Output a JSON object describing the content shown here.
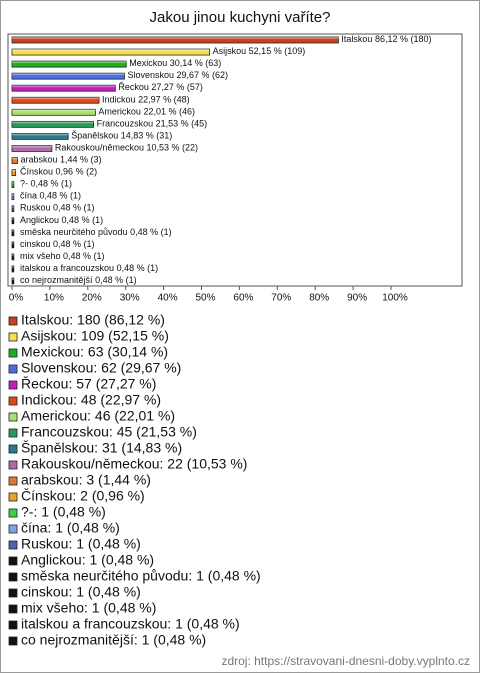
{
  "chart_data": {
    "type": "bar",
    "orientation": "horizontal",
    "title": "Jakou jinou kuchyni vaříte?",
    "categories": [
      "Italskou",
      "Asijskou",
      "Mexickou",
      "Slovenskou",
      "Řeckou",
      "Indickou",
      "Americkou",
      "Francouzskou",
      "Španělskou",
      "Rakouskou/německou",
      "arabskou",
      "Čínskou",
      "?-",
      "čína",
      "Ruskou",
      "Anglickou",
      "směska neurčitého původu",
      "cinskou",
      "mix všeho",
      "italskou a francouzskou",
      "co nejrozmanitější"
    ],
    "values": [
      86.12,
      52.15,
      30.14,
      29.67,
      27.27,
      22.97,
      22.01,
      21.53,
      14.83,
      10.53,
      1.44,
      0.96,
      0.48,
      0.48,
      0.48,
      0.48,
      0.48,
      0.48,
      0.48,
      0.48,
      0.48
    ],
    "value_labels": [
      "86,12 % (180)",
      "52,15 % (109)",
      "30,14 % (63)",
      "29,67 % (62)",
      "27,27 % (57)",
      "22,97 % (48)",
      "22,01 % (46)",
      "21,53 % (45)",
      "14,83 % (31)",
      "10,53 % (22)",
      "1,44 % (3)",
      "0,96 % (2)",
      "0,48 % (1)",
      "0,48 % (1)",
      "0,48 % (1)",
      "0,48 % (1)",
      "0,48 % (1)",
      "0,48 % (1)",
      "0,48 % (1)",
      "0,48 % (1)",
      "0,48 % (1)"
    ],
    "colors": [
      "#c8401c",
      "#f3e04c",
      "#1fb01f",
      "#4a6ee0",
      "#c020c0",
      "#e0481a",
      "#a8e070",
      "#2a9a5a",
      "#2a7a8a",
      "#b06aa8",
      "#e07a30",
      "#f0a030",
      "#40d040",
      "#80a0e8",
      "#5060b0",
      "#111111",
      "#111111",
      "#111111",
      "#111111",
      "#111111",
      "#111111"
    ],
    "legend_labels": [
      "Italskou: 180 (86,12 %)",
      "Asijskou: 109 (52,15 %)",
      "Mexickou: 63 (30,14 %)",
      "Slovenskou: 62 (29,67 %)",
      "Řeckou: 57 (27,27 %)",
      "Indickou: 48 (22,97 %)",
      "Americkou: 46 (22,01 %)",
      "Francouzskou: 45 (21,53 %)",
      "Španělskou: 31 (14,83 %)",
      "Rakouskou/německou: 22 (10,53 %)",
      "arabskou: 3 (1,44 %)",
      "Čínskou: 2 (0,96 %)",
      "?-: 1 (0,48 %)",
      "čína: 1 (0,48 %)",
      "Ruskou: 1 (0,48 %)",
      "Anglickou: 1 (0,48 %)",
      "směska neurčitého původu: 1 (0,48 %)",
      "cinskou: 1 (0,48 %)",
      "mix všeho: 1 (0,48 %)",
      "italskou a francouzskou: 1 (0,48 %)",
      "co nejrozmanitější: 1 (0,48 %)"
    ],
    "xlim": [
      0,
      100
    ],
    "xticks": [
      {
        "value": 0,
        "label": "0%"
      },
      {
        "value": 10,
        "label": "10%"
      },
      {
        "value": 20,
        "label": "20%"
      },
      {
        "value": 30,
        "label": "30%"
      },
      {
        "value": 40,
        "label": "40%"
      },
      {
        "value": 50,
        "label": "50%"
      },
      {
        "value": 60,
        "label": "60%"
      },
      {
        "value": 70,
        "label": "70%"
      },
      {
        "value": 80,
        "label": "80%"
      },
      {
        "value": 90,
        "label": "90%"
      },
      {
        "value": 100,
        "label": "100%"
      }
    ],
    "source": "zdroj: https://stravovani-dnesni-doby.vyplnto.cz"
  }
}
